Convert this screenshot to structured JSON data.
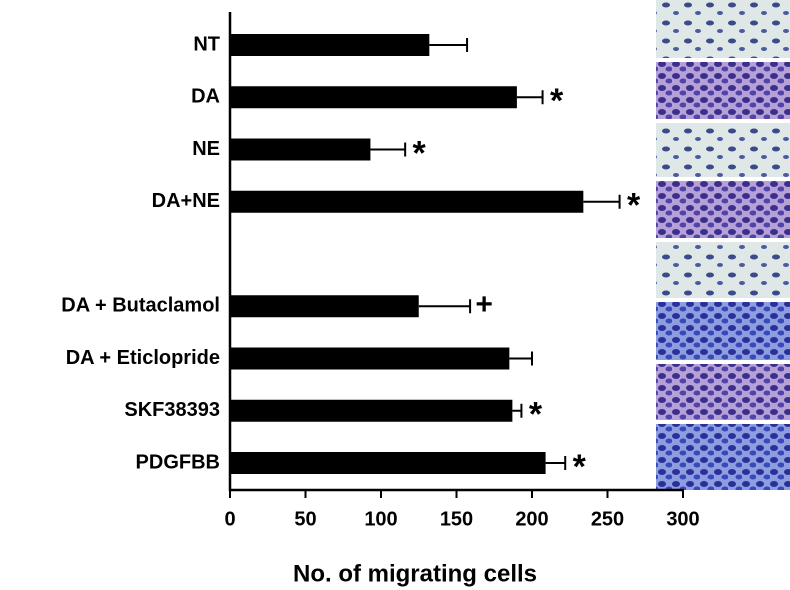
{
  "chart_data": {
    "type": "hbar_error",
    "xlabel": "No. of migrating cells",
    "categories": [
      "NT",
      "DA",
      "NE",
      "DA+NE",
      null,
      "DA + Butaclamol",
      "DA + Eticlopride",
      "SKF38393",
      "PDGFBB"
    ],
    "values": [
      132,
      190,
      93,
      234,
      null,
      125,
      185,
      187,
      209
    ],
    "errors": [
      25,
      17,
      23,
      24,
      null,
      34,
      15,
      6,
      13
    ],
    "annotations": [
      null,
      "*",
      "*",
      "*",
      null,
      "+",
      null,
      "*",
      "*"
    ],
    "color": "#000000",
    "xlim": [
      0,
      300
    ],
    "xticks": [
      0,
      50,
      100,
      150,
      200,
      250,
      300
    ]
  }
}
